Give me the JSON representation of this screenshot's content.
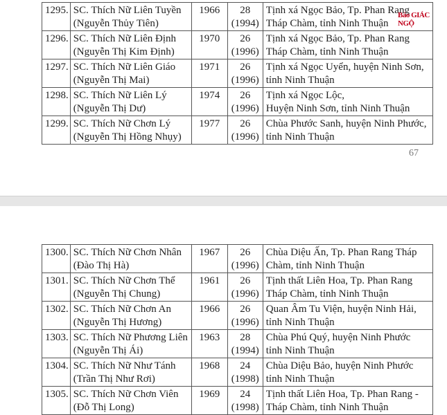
{
  "watermark": "Báo GIÁC NGỘ",
  "page_number": "67",
  "table1": [
    {
      "no": "1295.",
      "name": "SC. Thích Nữ Liên Tuyền",
      "lay_name": "(Nguyễn Thủy Tiên)",
      "born": "1966",
      "age": "28",
      "year": "(1994)",
      "place1": "Tịnh xá Ngọc Bảo, Tp. Phan Rang",
      "place2": "Tháp Chàm, tỉnh Ninh Thuận"
    },
    {
      "no": "1296.",
      "name": "SC. Thích Nữ Liên Định",
      "lay_name": "(Nguyễn Thị Kim Định)",
      "born": "1970",
      "age": "26",
      "year": "(1996)",
      "place1": "Tịnh xá Ngọc Bảo, Tp. Phan Rang",
      "place2": "Tháp Chàm, tỉnh Ninh Thuận"
    },
    {
      "no": "1297.",
      "name": "SC. Thích Nữ Liên Giáo",
      "lay_name": "(Nguyễn Thị Mai)",
      "born": "1971",
      "age": "26",
      "year": "(1996)",
      "place1": "Tịnh xá Ngọc Uyển, huyện Ninh Sơn,",
      "place2": "tỉnh Ninh Thuận"
    },
    {
      "no": "1298.",
      "name": "SC. Thích Nữ Liên Lý",
      "lay_name": "(Nguyễn Thị Dư)",
      "born": "1974",
      "age": "26",
      "year": "(1996)",
      "place1": "Tịnh xá Ngọc Lộc,",
      "place2": "Huyện Ninh Sơn, tỉnh Ninh Thuận"
    },
    {
      "no": "1299.",
      "name": "SC. Thích Nữ Chơn Lý",
      "lay_name": "(Nguyễn Thị Hồng Nhụy)",
      "born": "1977",
      "age": "26",
      "year": "(1996)",
      "place1": "Chùa Phước Sanh, huyện Ninh Phước,",
      "place2": "tỉnh Ninh Thuận"
    }
  ],
  "table2": [
    {
      "no": "1300.",
      "name": "SC. Thích Nữ Chơn Nhân",
      "lay_name": "(Đào Thị Hà)",
      "born": "1967",
      "age": "26",
      "year": "(1996)",
      "place1": "Chùa Diệu Ấn, Tp. Phan Rang Tháp",
      "place2": "Chàm, tỉnh Ninh Thuận"
    },
    {
      "no": "1301.",
      "name": "SC. Thích Nữ Chơn Thể",
      "lay_name": "(Nguyễn Thị Chung)",
      "born": "1961",
      "age": "26",
      "year": "(1996)",
      "place1": "Tịnh thất Liên Hoa, Tp. Phan Rang",
      "place2": "Tháp Chàm, tỉnh Ninh Thuận"
    },
    {
      "no": "1302.",
      "name": "SC. Thích Nữ Chơn An",
      "lay_name": "(Nguyễn Thị Hương)",
      "born": "1966",
      "age": "26",
      "year": "(1996)",
      "place1": "Quan Âm Tu Viện, huyện Ninh Hải,",
      "place2": "tỉnh Ninh Thuận"
    },
    {
      "no": "1303.",
      "name": "SC. Thích Nữ Phương Liên",
      "lay_name": "(Nguyễn Thị Ái)",
      "born": "1963",
      "age": "28",
      "year": "(1994)",
      "place1": "Chùa Phú Quý, huyện Ninh Phước",
      "place2": "tỉnh Ninh Thuận"
    },
    {
      "no": "1304.",
      "name": "SC. Thích Nữ Như Tánh",
      "lay_name": "(Trần Thị Như Rơi)",
      "born": "1968",
      "age": "24",
      "year": "(1998)",
      "place1": "Chùa Diệu Bảo, huyện Ninh Phước",
      "place2": "tỉnh Ninh Thuận"
    },
    {
      "no": "1305.",
      "name": "SC. Thích Nữ Chơn Viên",
      "lay_name": "(Đỗ Thị Long)",
      "born": "1969",
      "age": "24",
      "year": "(1998)",
      "place1": "Tịnh thất Liên Hoa, Tp. Phan Rang -",
      "place2": "Tháp Chàm, tỉnh Ninh Thuận"
    }
  ]
}
